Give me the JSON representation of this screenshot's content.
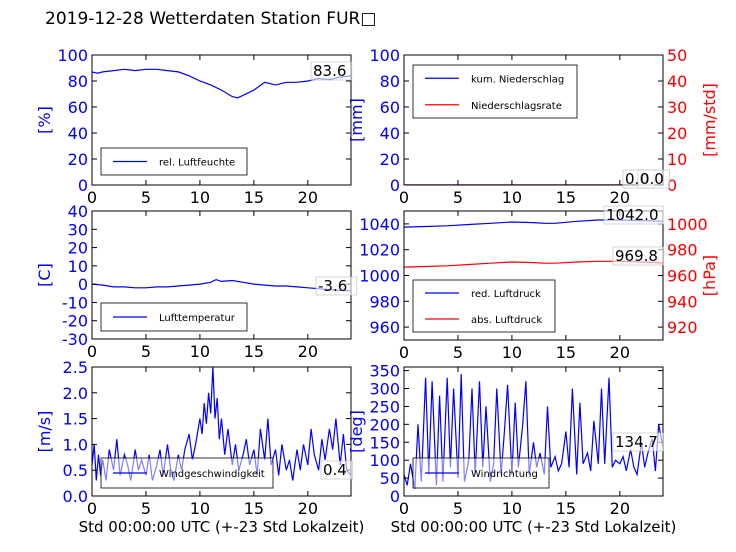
{
  "title": "2019-12-28 Wetterdaten Station FUR□",
  "colors": {
    "left_axis": "#0000ff",
    "right_axis": "#ff0000",
    "series_blue": "#0000ff",
    "series_red": "#ff0000"
  },
  "chart_data": [
    {
      "id": "humidity",
      "type": "line",
      "xlim": [
        0,
        24
      ],
      "xticks": [
        0,
        5,
        10,
        15,
        20
      ],
      "ylabel": "[%]",
      "ylim": [
        0,
        100
      ],
      "yticks": [
        0,
        20,
        40,
        60,
        80,
        100
      ],
      "legend": {
        "placement": "lower-left",
        "entries": [
          "rel. Luftfeuchte"
        ]
      },
      "annotations": [
        "83.6"
      ],
      "series": [
        {
          "name": "rel. Luftfeuchte",
          "color": "#0000ff",
          "axis": "left",
          "x": [
            0,
            0.5,
            1,
            2,
            3,
            4,
            5,
            6,
            7,
            8,
            9,
            10,
            11,
            12,
            13,
            13.5,
            14,
            15,
            16,
            17,
            18,
            19,
            20,
            21,
            22,
            23,
            24
          ],
          "y": [
            87,
            86,
            87,
            88,
            89,
            88,
            89,
            89,
            88,
            87,
            84,
            80,
            77,
            73,
            68,
            67,
            69,
            73,
            79,
            77,
            79,
            79,
            80,
            82,
            81,
            83,
            84
          ]
        }
      ]
    },
    {
      "id": "precip",
      "type": "line",
      "xlim": [
        0,
        24
      ],
      "xticks": [
        0,
        5,
        10,
        15,
        20
      ],
      "ylabel": "[mm]",
      "ylim": [
        0,
        100
      ],
      "yticks": [
        0,
        20,
        40,
        60,
        80,
        100
      ],
      "y2label": "[mm/std]",
      "y2lim": [
        0,
        50
      ],
      "y2ticks": [
        0,
        10,
        20,
        30,
        40,
        50
      ],
      "legend": {
        "placement": "upper-left",
        "entries": [
          "kum. Niederschlag",
          "Niederschlagsrate"
        ]
      },
      "annotations": [
        "0.0",
        "0.0"
      ],
      "series": [
        {
          "name": "kum. Niederschlag",
          "color": "#0000ff",
          "axis": "left",
          "x": [
            0,
            24
          ],
          "y": [
            0,
            0
          ]
        },
        {
          "name": "Niederschlagsrate",
          "color": "#ff0000",
          "axis": "right",
          "x": [
            0,
            24
          ],
          "y": [
            0,
            0
          ]
        }
      ]
    },
    {
      "id": "temperature",
      "type": "line",
      "xlim": [
        0,
        24
      ],
      "xticks": [
        0,
        5,
        10,
        15,
        20
      ],
      "ylabel": "[C]",
      "ylim": [
        -30,
        40
      ],
      "yticks": [
        -30,
        -20,
        -10,
        0,
        10,
        20,
        30,
        40
      ],
      "legend": {
        "placement": "lower-left",
        "entries": [
          "Lufttemperatur"
        ]
      },
      "annotations": [
        "-3.6"
      ],
      "series": [
        {
          "name": "Lufttemperatur",
          "color": "#0000ff",
          "axis": "left",
          "x": [
            0,
            1,
            2,
            3,
            4,
            5,
            6,
            7,
            8,
            9,
            10,
            11,
            11.5,
            12,
            13,
            14,
            15,
            16,
            17,
            18,
            19,
            20,
            21,
            22,
            23,
            24
          ],
          "y": [
            0,
            -0.5,
            -1.5,
            -1.5,
            -2,
            -2,
            -1.5,
            -1.5,
            -1,
            -0.5,
            0,
            1,
            2.5,
            1.5,
            2,
            1,
            0,
            -0.5,
            -1,
            -1,
            -1.5,
            -2,
            -2.5,
            -3,
            -3.5,
            -3.6
          ]
        }
      ]
    },
    {
      "id": "pressure",
      "type": "line",
      "xlim": [
        0,
        24
      ],
      "xticks": [
        0,
        5,
        10,
        15,
        20
      ],
      "ylim": [
        950,
        1050
      ],
      "yticks": [
        960,
        980,
        1000,
        1020,
        1040
      ],
      "y2label": "[hPa]",
      "y2lim": [
        910,
        1010
      ],
      "y2ticks": [
        920,
        940,
        960,
        980,
        1000
      ],
      "legend": {
        "placement": "lower-left",
        "entries": [
          "red. Luftdruck",
          "abs. Luftdruck"
        ]
      },
      "annotations": [
        "1042.0",
        "969.8"
      ],
      "series": [
        {
          "name": "red. Luftdruck",
          "color": "#0000ff",
          "axis": "left",
          "x": [
            0,
            2,
            4,
            6,
            8,
            10,
            12,
            13,
            14,
            16,
            18,
            20,
            22,
            24
          ],
          "y": [
            1037.5,
            1038,
            1038.5,
            1039.5,
            1040.5,
            1041.5,
            1041,
            1040.5,
            1040.5,
            1042,
            1043,
            1043,
            1042.5,
            1042
          ]
        },
        {
          "name": "abs. Luftdruck",
          "color": "#ff0000",
          "axis": "right",
          "x": [
            0,
            2,
            4,
            6,
            8,
            10,
            12,
            13,
            14,
            16,
            18,
            20,
            22,
            24
          ],
          "y": [
            966.5,
            967,
            967.5,
            968.5,
            969.5,
            970.5,
            970,
            969.5,
            969.5,
            970.5,
            971,
            971,
            970.5,
            969.8
          ]
        }
      ]
    },
    {
      "id": "windspeed",
      "type": "line",
      "xlim": [
        0,
        24
      ],
      "xticks": [
        0,
        5,
        10,
        15,
        20
      ],
      "ylabel": "[m/s]",
      "ylim": [
        0,
        2.5
      ],
      "yticks": [
        0.0,
        0.5,
        1.0,
        1.5,
        2.0,
        2.5
      ],
      "xlabel": "Std 00:00:00 UTC (+-23 Std Lokalzeit)",
      "legend": {
        "placement": "lower-center",
        "entries": [
          "Windgeschwindigkeit"
        ]
      },
      "annotations": [
        "0.4"
      ],
      "series": [
        {
          "name": "Windgeschwindigkeit",
          "color": "#0000ff",
          "axis": "left",
          "x": [
            0,
            0.2,
            0.4,
            0.6,
            0.8,
            1,
            1.3,
            1.6,
            2,
            2.3,
            2.6,
            3,
            3.3,
            3.6,
            4,
            4.3,
            4.6,
            5,
            5.3,
            5.6,
            6,
            6.3,
            6.6,
            7,
            7.3,
            7.6,
            8,
            8.3,
            8.6,
            9,
            9.3,
            9.6,
            10,
            10.2,
            10.4,
            10.6,
            10.8,
            11,
            11.2,
            11.4,
            11.6,
            11.8,
            12,
            12.3,
            12.6,
            13,
            13.3,
            13.6,
            14,
            14.3,
            14.6,
            15,
            15.3,
            15.6,
            16,
            16.3,
            16.6,
            17,
            17.3,
            17.6,
            18,
            18.3,
            18.6,
            19,
            19.3,
            19.6,
            20,
            20.3,
            20.6,
            21,
            21.3,
            21.6,
            22,
            22.3,
            22.6,
            23,
            23.3,
            23.6,
            24
          ],
          "y": [
            0.6,
            1.0,
            0.3,
            0.8,
            0.4,
            0.7,
            0.3,
            0.9,
            0.5,
            1.1,
            0.4,
            0.8,
            0.6,
            0.3,
            0.9,
            0.5,
            0.7,
            0.4,
            0.8,
            0.3,
            0.6,
            0.9,
            0.4,
            1.0,
            0.5,
            0.3,
            0.8,
            0.5,
            0.9,
            1.2,
            0.7,
            1.0,
            1.5,
            1.2,
            1.8,
            1.4,
            2.0,
            1.6,
            2.5,
            1.5,
            1.9,
            1.1,
            1.5,
            0.8,
            1.3,
            0.6,
            1.0,
            0.5,
            0.8,
            1.1,
            0.6,
            0.9,
            0.4,
            1.3,
            0.7,
            1.5,
            0.6,
            0.9,
            0.4,
            1.0,
            0.5,
            0.7,
            0.3,
            0.9,
            0.5,
            1.0,
            0.6,
            1.3,
            0.8,
            0.5,
            1.1,
            0.7,
            1.3,
            0.9,
            1.5,
            0.6,
            1.2,
            0.5,
            0.4
          ]
        }
      ]
    },
    {
      "id": "winddir",
      "type": "line",
      "xlim": [
        0,
        24
      ],
      "xticks": [
        0,
        5,
        10,
        15,
        20
      ],
      "ylabel": "[deg]",
      "ylim": [
        0,
        360
      ],
      "yticks": [
        0,
        50,
        100,
        150,
        200,
        250,
        300,
        350
      ],
      "xlabel": "Std 00:00:00 UTC (+-23 Std Lokalzeit)",
      "legend": {
        "placement": "lower-center",
        "entries": [
          "Windrichtung"
        ]
      },
      "annotations": [
        "134.7"
      ],
      "series": [
        {
          "name": "Windrichtung",
          "color": "#0000ff",
          "axis": "left",
          "x": [
            0,
            0.3,
            0.6,
            1,
            1.3,
            1.6,
            2,
            2.3,
            2.6,
            3,
            3.3,
            3.6,
            4,
            4.3,
            4.6,
            5,
            5.3,
            5.6,
            6,
            6.3,
            6.6,
            7,
            7.3,
            7.6,
            8,
            8.3,
            8.6,
            9,
            9.3,
            9.6,
            10,
            10.3,
            10.6,
            11,
            11.3,
            11.6,
            12,
            12.3,
            12.6,
            13,
            13.3,
            13.6,
            14,
            14.3,
            14.6,
            15,
            15.3,
            15.6,
            16,
            16.3,
            16.6,
            17,
            17.3,
            17.6,
            18,
            18.3,
            18.6,
            19,
            19.3,
            19.6,
            20,
            20.3,
            20.6,
            21,
            21.3,
            21.6,
            22,
            22.3,
            22.6,
            23,
            23.3,
            23.6,
            24
          ],
          "y": [
            60,
            30,
            90,
            20,
            200,
            40,
            330,
            60,
            320,
            30,
            280,
            40,
            330,
            80,
            300,
            50,
            340,
            40,
            100,
            300,
            60,
            320,
            80,
            250,
            40,
            90,
            300,
            60,
            180,
            310,
            60,
            260,
            80,
            200,
            320,
            60,
            150,
            80,
            120,
            60,
            250,
            80,
            110,
            70,
            90,
            180,
            80,
            300,
            60,
            260,
            90,
            120,
            70,
            210,
            90,
            300,
            90,
            330,
            80,
            100,
            90,
            110,
            70,
            130,
            80,
            60,
            150,
            80,
            120,
            160,
            70,
            200,
            135
          ]
        }
      ]
    }
  ]
}
